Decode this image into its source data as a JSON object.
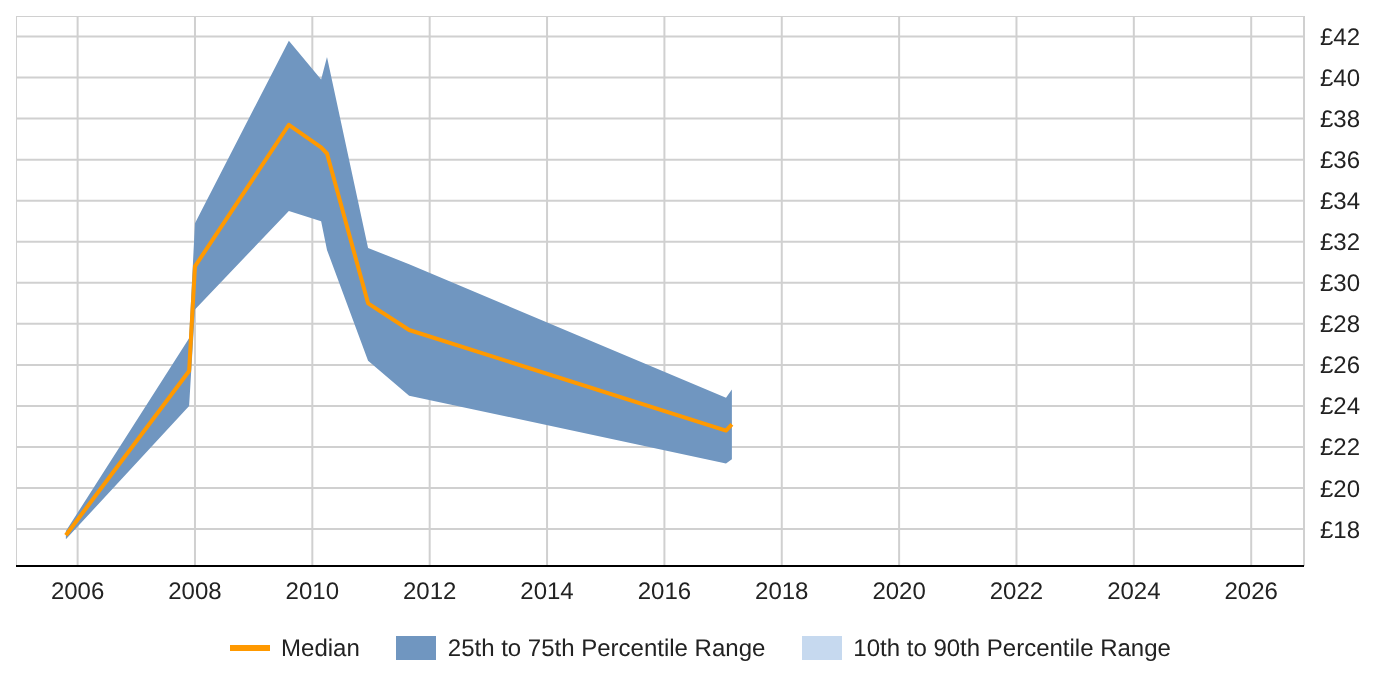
{
  "chart_data": {
    "type": "line",
    "x": [
      2005.8,
      2007.9,
      2008.0,
      2009.6,
      2010.15,
      2010.25,
      2010.95,
      2011.65,
      2017.05,
      2017.15
    ],
    "series": [
      {
        "name": "Median",
        "color": "#ff9900",
        "values": [
          17.7,
          25.7,
          30.8,
          37.7,
          36.6,
          36.3,
          29.0,
          27.7,
          22.8,
          23.1
        ]
      },
      {
        "name": "25th to 75th Percentile Range",
        "type": "area",
        "color": "#7096c0",
        "values": [
          null,
          null,
          null,
          null,
          null,
          null,
          null,
          null,
          null,
          null
        ],
        "lower": [
          17.5,
          24.0,
          28.7,
          33.5,
          33.0,
          31.6,
          26.2,
          24.5,
          21.2,
          21.4
        ],
        "upper": [
          17.9,
          27.3,
          32.9,
          41.8,
          39.9,
          41.0,
          31.7,
          30.9,
          24.4,
          24.8
        ]
      },
      {
        "name": "10th to 90th Percentile Range",
        "type": "area",
        "color": "#c6d9ef",
        "values": [
          null,
          null,
          null,
          null,
          null,
          null,
          null,
          null,
          null,
          null
        ]
      }
    ],
    "xlim": [
      2004.95,
      2026.9
    ],
    "xticks": [
      2006,
      2008,
      2010,
      2012,
      2014,
      2016,
      2018,
      2020,
      2022,
      2024,
      2026
    ],
    "ylim": [
      16.2,
      43
    ],
    "yticks": [
      {
        "value": 18,
        "label": "£18"
      },
      {
        "value": 20,
        "label": "£20"
      },
      {
        "value": 22,
        "label": "£22"
      },
      {
        "value": 24,
        "label": "£24"
      },
      {
        "value": 26,
        "label": "£26"
      },
      {
        "value": 28,
        "label": "£28"
      },
      {
        "value": 30,
        "label": "£30"
      },
      {
        "value": 32,
        "label": "£32"
      },
      {
        "value": 34,
        "label": "£34"
      },
      {
        "value": 36,
        "label": "£36"
      },
      {
        "value": 38,
        "label": "£38"
      },
      {
        "value": 40,
        "label": "£40"
      },
      {
        "value": 42,
        "label": "£42"
      }
    ],
    "grid": true,
    "legend": "bottom"
  }
}
